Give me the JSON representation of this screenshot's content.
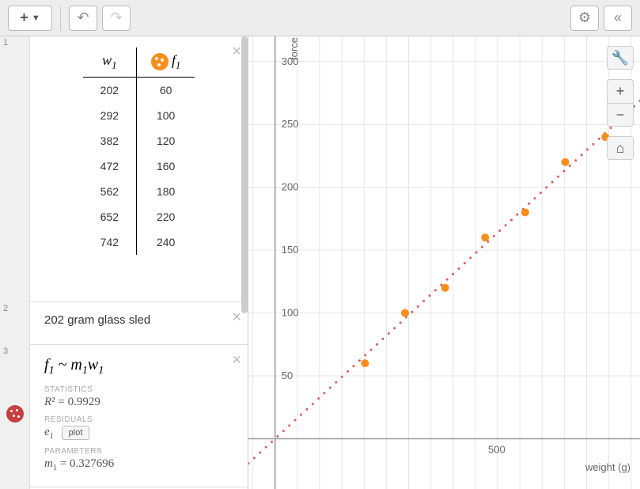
{
  "toolbar": {
    "add_label": "+",
    "undo_icon": "↶",
    "redo_icon": "↷",
    "settings_icon": "⚙",
    "collapse_icon": "«"
  },
  "panels": {
    "p1_index": "1",
    "p2_index": "2",
    "p3_index": "3"
  },
  "table": {
    "col1_header": "w",
    "col1_sub": "1",
    "col2_header": "f",
    "col2_sub": "1",
    "rows": [
      {
        "w": "202",
        "f": "60"
      },
      {
        "w": "292",
        "f": "100"
      },
      {
        "w": "382",
        "f": "120"
      },
      {
        "w": "472",
        "f": "160"
      },
      {
        "w": "562",
        "f": "180"
      },
      {
        "w": "652",
        "f": "220"
      },
      {
        "w": "742",
        "f": "240"
      }
    ]
  },
  "note": {
    "text": "202 gram glass sled"
  },
  "regression": {
    "formula_html": "f₁ ~ m₁w₁",
    "statistics_label": "STATISTICS",
    "r2_text": "R² = 0.9929",
    "residuals_label": "RESIDUALS",
    "residuals_var": "e₁",
    "plot_label": "plot",
    "parameters_label": "PARAMETERS",
    "m1_text": "m₁ = 0.327696"
  },
  "chart": {
    "type": "scatter",
    "xlabel": "weight (g)",
    "ylabel": "force (g)",
    "xlim": [
      -60,
      820
    ],
    "ylim": [
      -40,
      320
    ],
    "x_ticks": [
      500
    ],
    "y_ticks": [
      50,
      100,
      150,
      200,
      250,
      300
    ],
    "grid_minor_step": 50,
    "grid_color": "#e6e6e6",
    "axis_color": "#999999",
    "background_color": "#ffffff",
    "points": [
      {
        "x": 202,
        "y": 60
      },
      {
        "x": 292,
        "y": 100
      },
      {
        "x": 382,
        "y": 120
      },
      {
        "x": 472,
        "y": 160
      },
      {
        "x": 562,
        "y": 180
      },
      {
        "x": 652,
        "y": 220
      },
      {
        "x": 742,
        "y": 240
      }
    ],
    "point_color": "#f78f1e",
    "point_radius": 5,
    "fit_line": {
      "slope": 0.327696,
      "intercept": 0,
      "color": "#d95c5c",
      "dot_radius": 1.5,
      "dot_spacing": 10
    },
    "tick_fontsize": 13,
    "tick_color": "#666666"
  },
  "chart_controls": {
    "wrench": "🔧",
    "plus": "+",
    "minus": "−",
    "home": "⌂"
  }
}
